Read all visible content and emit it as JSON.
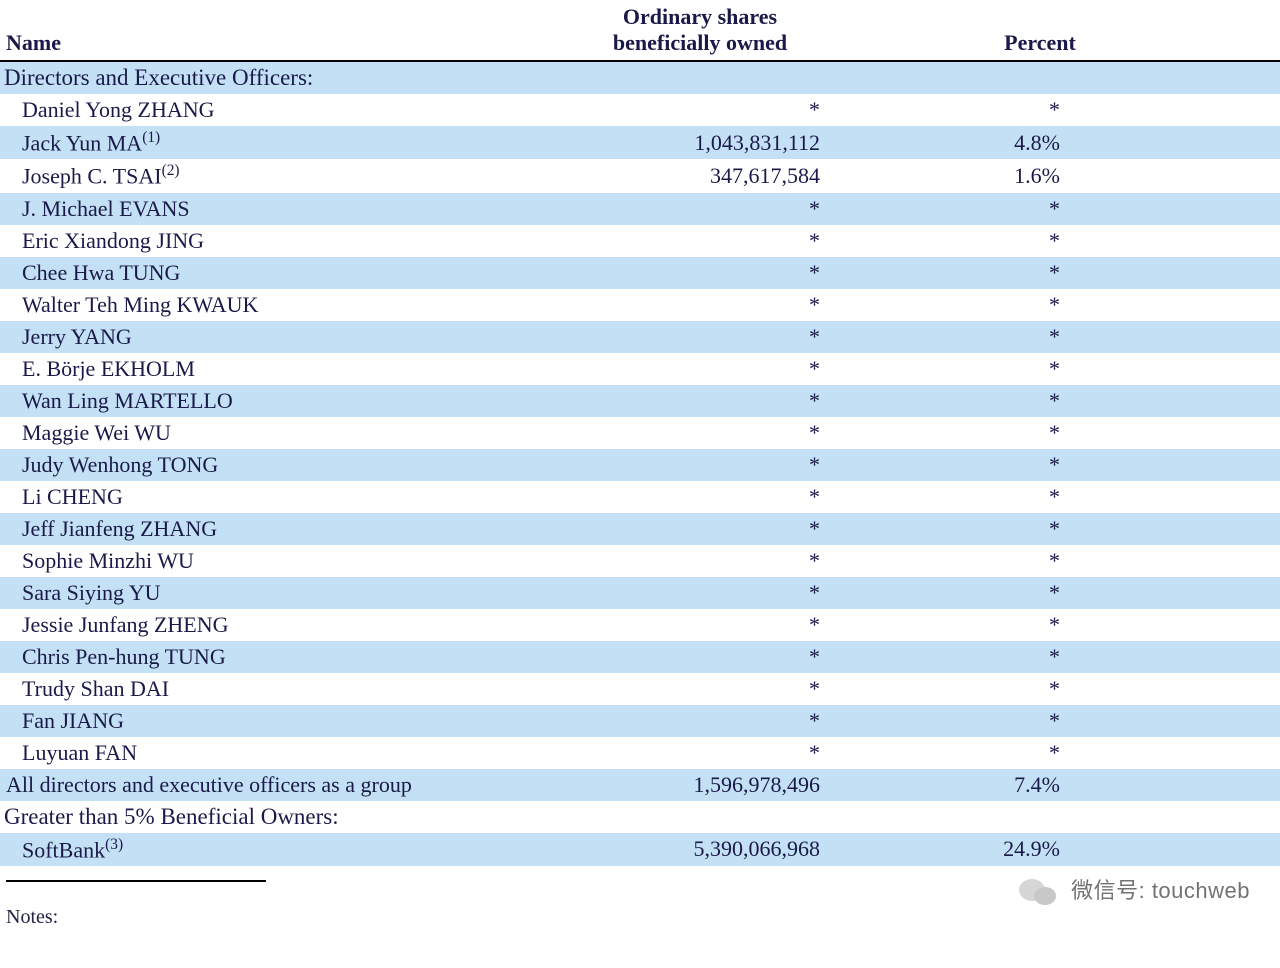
{
  "header": {
    "col_name": "Name",
    "col_shares_line1": "Ordinary shares",
    "col_shares_line2": "beneficially owned",
    "col_percent": "Percent"
  },
  "sections": {
    "directors_header": "Directors and Executive Officers:",
    "all_group": {
      "label": "All directors and executive officers as a group",
      "shares": "1,596,978,496",
      "percent": "7.4%"
    },
    "gt5_header": "Greater than 5% Beneficial Owners:"
  },
  "rows": [
    {
      "name": "Daniel Yong ZHANG",
      "sup": "",
      "shares": "*",
      "percent": "*"
    },
    {
      "name": "Jack Yun MA",
      "sup": "(1)",
      "shares": "1,043,831,112",
      "percent": "4.8%"
    },
    {
      "name": "Joseph C. TSAI",
      "sup": "(2)",
      "shares": "347,617,584",
      "percent": "1.6%"
    },
    {
      "name": "J. Michael EVANS",
      "sup": "",
      "shares": "*",
      "percent": "*"
    },
    {
      "name": "Eric Xiandong JING",
      "sup": "",
      "shares": "*",
      "percent": "*"
    },
    {
      "name": "Chee Hwa TUNG",
      "sup": "",
      "shares": "*",
      "percent": "*"
    },
    {
      "name": "Walter Teh Ming KWAUK",
      "sup": "",
      "shares": "*",
      "percent": "*"
    },
    {
      "name": "Jerry YANG",
      "sup": "",
      "shares": "*",
      "percent": "*"
    },
    {
      "name": "E. Börje EKHOLM",
      "sup": "",
      "shares": "*",
      "percent": "*"
    },
    {
      "name": "Wan Ling MARTELLO",
      "sup": "",
      "shares": "*",
      "percent": "*"
    },
    {
      "name": "Maggie Wei WU",
      "sup": "",
      "shares": "*",
      "percent": "*"
    },
    {
      "name": "Judy Wenhong TONG",
      "sup": "",
      "shares": "*",
      "percent": "*"
    },
    {
      "name": "Li CHENG",
      "sup": "",
      "shares": "*",
      "percent": "*"
    },
    {
      "name": "Jeff Jianfeng ZHANG",
      "sup": "",
      "shares": "*",
      "percent": "*"
    },
    {
      "name": "Sophie Minzhi WU",
      "sup": "",
      "shares": "*",
      "percent": "*"
    },
    {
      "name": "Sara Siying YU",
      "sup": "",
      "shares": "*",
      "percent": "*"
    },
    {
      "name": "Jessie Junfang ZHENG",
      "sup": "",
      "shares": "*",
      "percent": "*"
    },
    {
      "name": "Chris Pen-hung TUNG",
      "sup": "",
      "shares": "*",
      "percent": "*"
    },
    {
      "name": "Trudy Shan DAI",
      "sup": "",
      "shares": "*",
      "percent": "*"
    },
    {
      "name": "Fan JIANG",
      "sup": "",
      "shares": "*",
      "percent": "*"
    },
    {
      "name": "Luyuan FAN",
      "sup": "",
      "shares": "*",
      "percent": "*"
    }
  ],
  "gt5_rows": [
    {
      "name": "SoftBank",
      "sup": "(3)",
      "shares": "5,390,066,968",
      "percent": "24.9%"
    }
  ],
  "notes_label": "Notes:",
  "watermark": {
    "prefix": "微信号:",
    "handle": "touchweb"
  },
  "style": {
    "stripe_color": "#c3e0f4",
    "text_color": "#1a1a4a",
    "font_family": "Times New Roman"
  }
}
